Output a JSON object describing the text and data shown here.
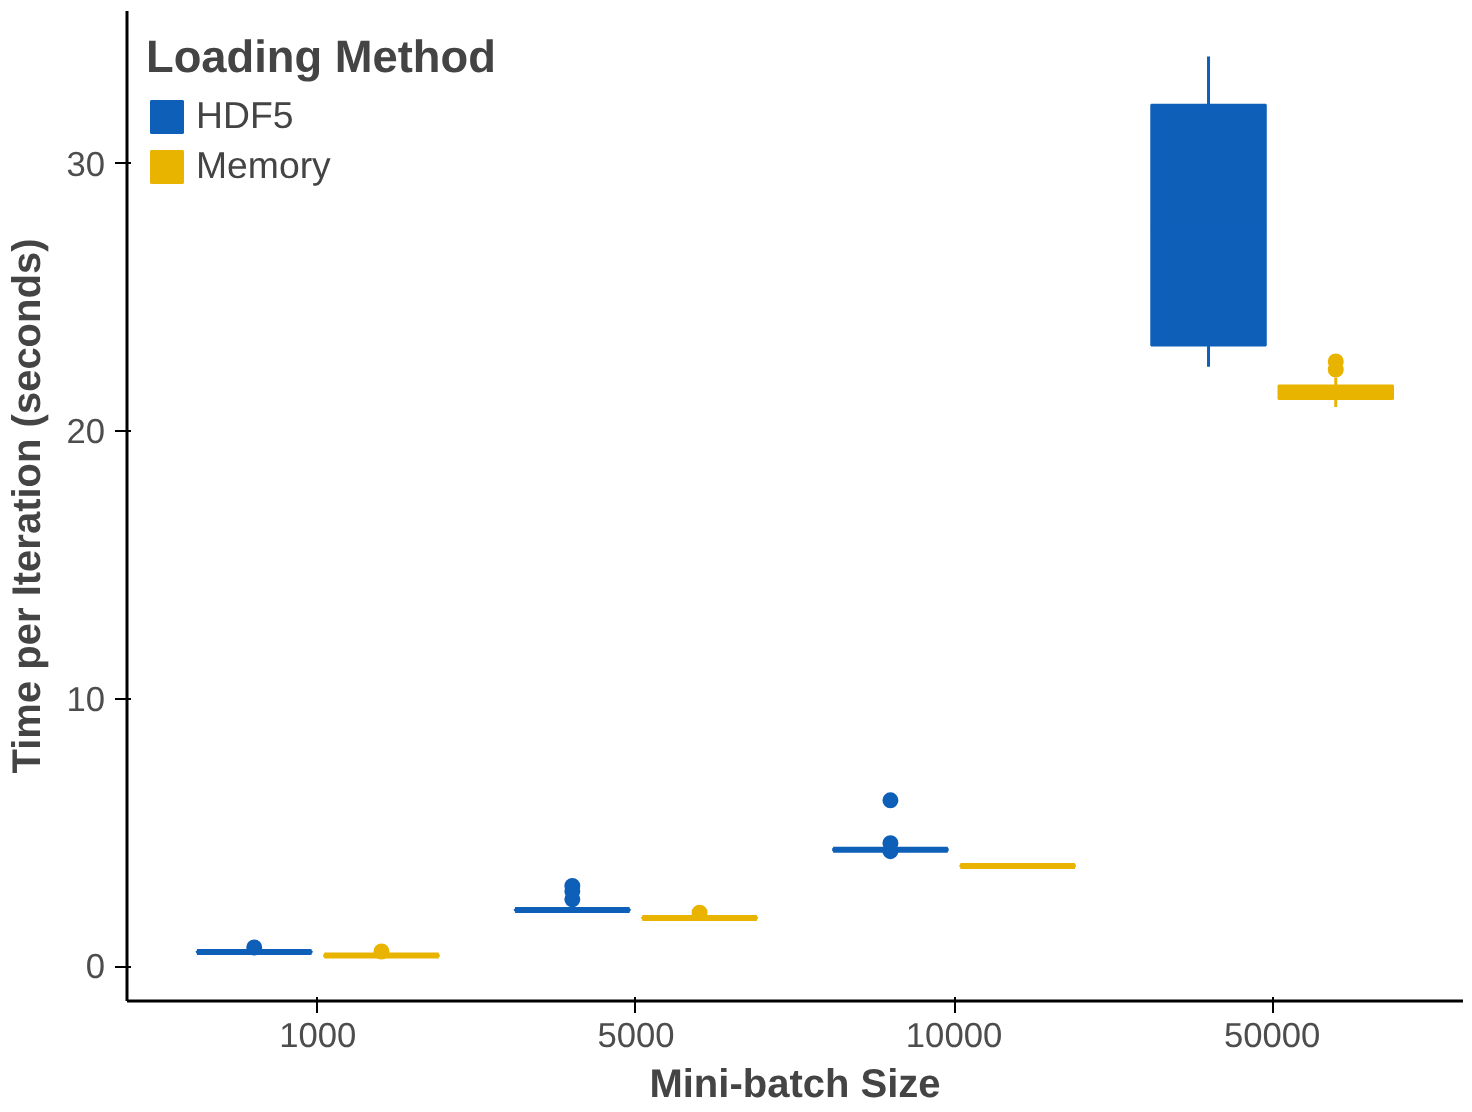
{
  "chart_data": {
    "type": "box",
    "xlabel": "Mini-batch Size",
    "ylabel": "Time per Iteration (seconds)",
    "legend_title": "Loading Method",
    "categories": [
      "1000",
      "5000",
      "10000",
      "50000"
    ],
    "ylim": [
      -1.3,
      35.7
    ],
    "yticks": [
      0,
      10,
      20,
      30
    ],
    "grid": false,
    "legend": "top left",
    "series": [
      {
        "name": "HDF5",
        "color": "#0d5fb8",
        "boxes": [
          {
            "low": 0.5,
            "q1": 0.5,
            "median": 0.53,
            "q3": 0.56,
            "high": 0.6,
            "outliers": [
              0.7
            ]
          },
          {
            "low": 2.05,
            "q1": 2.07,
            "median": 2.1,
            "q3": 2.13,
            "high": 2.2,
            "outliers": [
              2.5,
              2.8,
              3.0
            ]
          },
          {
            "low": 4.3,
            "q1": 4.32,
            "median": 4.35,
            "q3": 4.4,
            "high": 4.45,
            "outliers": [
              4.3,
              4.6,
              6.2
            ]
          },
          {
            "low": 22.4,
            "q1": 23.2,
            "median": 27.5,
            "q3": 32.2,
            "high": 34.0
          }
        ]
      },
      {
        "name": "Memory",
        "color": "#e8b400",
        "boxes": [
          {
            "low": 0.35,
            "q1": 0.37,
            "median": 0.4,
            "q3": 0.43,
            "high": 0.45,
            "outliers": [
              0.55
            ]
          },
          {
            "low": 1.75,
            "q1": 1.77,
            "median": 1.8,
            "q3": 1.83,
            "high": 1.85,
            "outliers": [
              2.0
            ]
          },
          {
            "low": 3.7,
            "q1": 3.72,
            "median": 3.75,
            "q3": 3.78,
            "high": 3.8
          },
          {
            "low": 20.9,
            "q1": 21.2,
            "median": 21.4,
            "q3": 21.7,
            "high": 22.0,
            "outliers": [
              22.3,
              22.6
            ]
          }
        ]
      }
    ]
  }
}
